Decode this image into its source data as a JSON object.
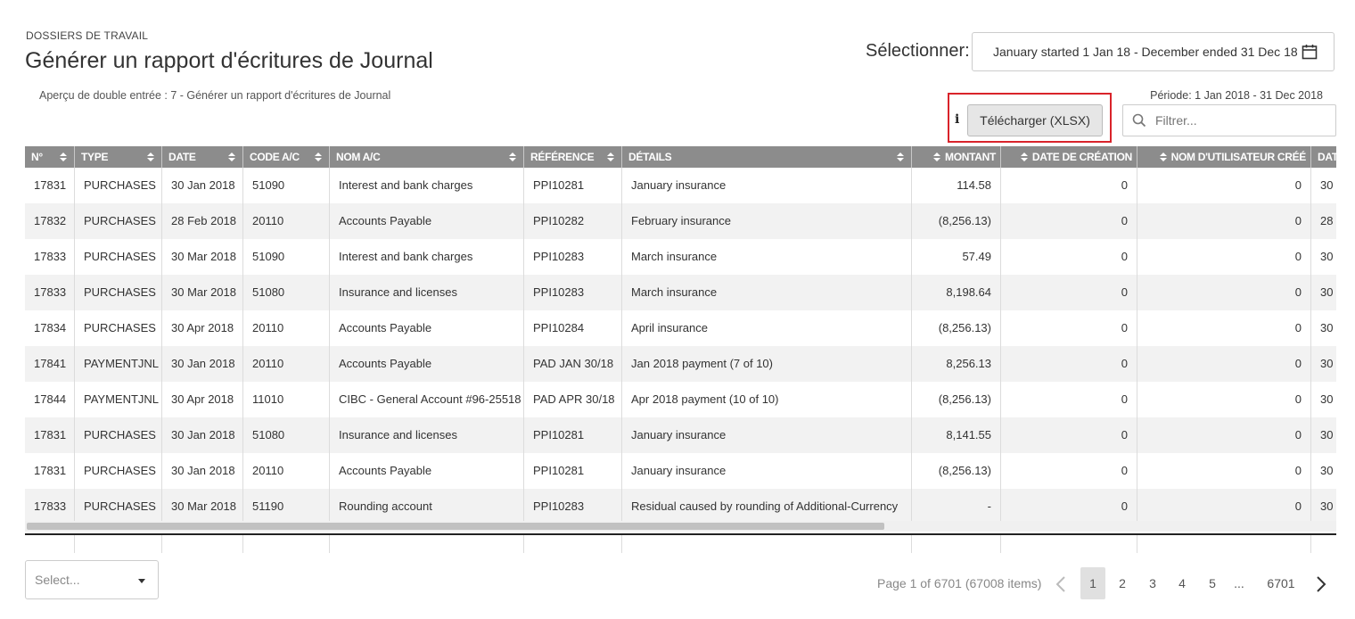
{
  "header": {
    "breadcrumb": "DOSSIERS DE TRAVAIL",
    "title": "Générer un rapport d'écritures de Journal",
    "subtitle": "Aperçu de double entrée : 7 - Générer un rapport d'écritures de Journal"
  },
  "period_select": {
    "label": "Sélectionner:",
    "value": "January started 1 Jan 18 - December ended 31 Dec 18",
    "icon": "calendar-icon"
  },
  "period_text": "Période: 1 Jan 2018 - 31 Dec 2018",
  "toolbar": {
    "info_label": "i",
    "download_label": "Télécharger (XLSX)",
    "highlight_color": "#d9232a",
    "filter_placeholder": "Filtrer..."
  },
  "table": {
    "header_bg": "#8c8c8c",
    "columns": [
      "N°",
      "TYPE",
      "DATE",
      "CODE A/C",
      "NOM A/C",
      "RÉFÉRENCE",
      "DÉTAILS",
      "MONTANT",
      "DATE DE CRÉATION",
      "NOM D'UTILISATEUR CRÉÉ",
      "DAT"
    ],
    "rows": [
      [
        "17831",
        "PURCHASES",
        "30 Jan 2018",
        "51090",
        "Interest and bank charges",
        "PPI10281",
        "January insurance",
        "114.58",
        "0",
        "0",
        "30 ."
      ],
      [
        "17832",
        "PURCHASES",
        "28 Feb 2018",
        "20110",
        "Accounts Payable",
        "PPI10282",
        "February insurance",
        "(8,256.13)",
        "0",
        "0",
        "28"
      ],
      [
        "17833",
        "PURCHASES",
        "30 Mar 2018",
        "51090",
        "Interest and bank charges",
        "PPI10283",
        "March insurance",
        "57.49",
        "0",
        "0",
        "30"
      ],
      [
        "17833",
        "PURCHASES",
        "30 Mar 2018",
        "51080",
        "Insurance and licenses",
        "PPI10283",
        "March insurance",
        "8,198.64",
        "0",
        "0",
        "30"
      ],
      [
        "17834",
        "PURCHASES",
        "30 Apr 2018",
        "20110",
        "Accounts Payable",
        "PPI10284",
        "April insurance",
        "(8,256.13)",
        "0",
        "0",
        "30 ."
      ],
      [
        "17841",
        "PAYMENTJNL",
        "30 Jan 2018",
        "20110",
        "Accounts Payable",
        "PAD JAN 30/18",
        "Jan 2018 payment (7 of 10)",
        "8,256.13",
        "0",
        "0",
        "30 ."
      ],
      [
        "17844",
        "PAYMENTJNL",
        "30 Apr 2018",
        "11010",
        "CIBC - General Account #96-25518",
        "PAD APR 30/18",
        "Apr 2018 payment (10 of 10)",
        "(8,256.13)",
        "0",
        "0",
        "30 ."
      ],
      [
        "17831",
        "PURCHASES",
        "30 Jan 2018",
        "51080",
        "Insurance and licenses",
        "PPI10281",
        "January insurance",
        "8,141.55",
        "0",
        "0",
        "30 ."
      ],
      [
        "17831",
        "PURCHASES",
        "30 Jan 2018",
        "20110",
        "Accounts Payable",
        "PPI10281",
        "January insurance",
        "(8,256.13)",
        "0",
        "0",
        "30 ."
      ],
      [
        "17833",
        "PURCHASES",
        "30 Mar 2018",
        "51190",
        "Rounding account",
        "PPI10283",
        "Residual caused by rounding of Additional-Currency",
        "-",
        "0",
        "0",
        "30"
      ]
    ]
  },
  "pagination": {
    "page_size_placeholder": "Select...",
    "info": "Page 1 of 6701 (67008 items)",
    "pages": [
      "1",
      "2",
      "3",
      "4",
      "5",
      "...",
      "6701"
    ],
    "active_page": "1"
  }
}
